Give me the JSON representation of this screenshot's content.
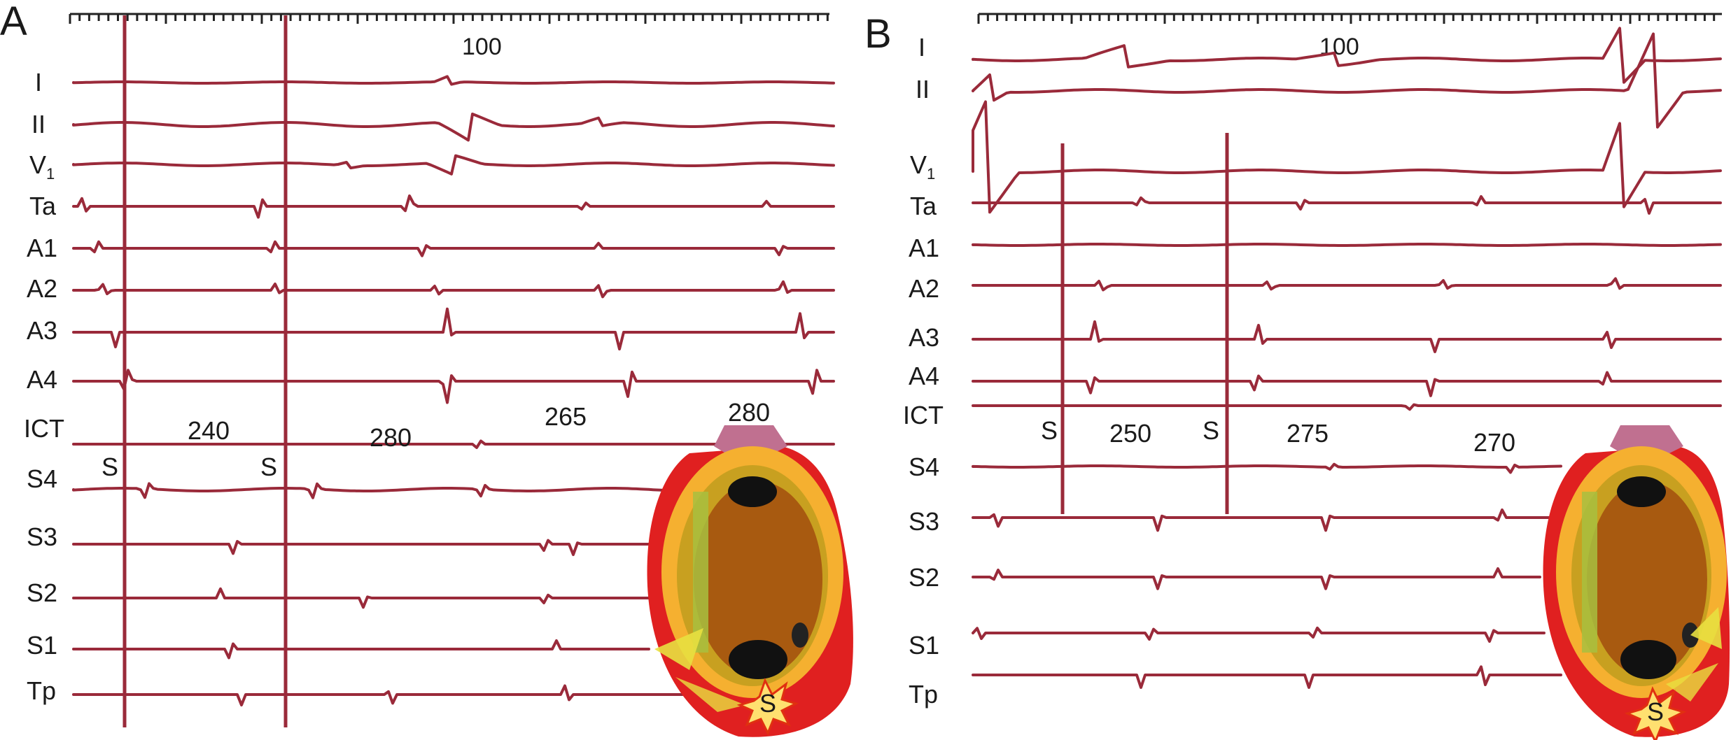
{
  "panels": [
    {
      "id": "A",
      "letter": "A",
      "scale_label": "100",
      "leads": [
        "I",
        "II",
        "V",
        "Ta",
        "A1",
        "A2",
        "A3",
        "A4",
        "ICT",
        "S4",
        "S3",
        "S2",
        "S1",
        "Tp"
      ],
      "v1_subscript": "1",
      "stim_label": "S",
      "intervals": [
        "240",
        "280",
        "265",
        "280"
      ],
      "inset_stim_label": "S"
    },
    {
      "id": "B",
      "letter": "B",
      "scale_label": "100",
      "leads": [
        "I",
        "II",
        "V",
        "Ta",
        "A1",
        "A2",
        "A3",
        "A4",
        "ICT",
        "S4",
        "S3",
        "S2",
        "S1",
        "Tp"
      ],
      "v1_subscript": "1",
      "stim_label": "S",
      "intervals": [
        "250",
        "275",
        "270"
      ],
      "inset_stim_label": "S"
    }
  ],
  "colors": {
    "trace": "#9a2a3a",
    "heart_outer": "#e02020",
    "heart_ring": "#f0a020",
    "heart_inner": "#a85a10",
    "heart_top": "#c07090"
  }
}
